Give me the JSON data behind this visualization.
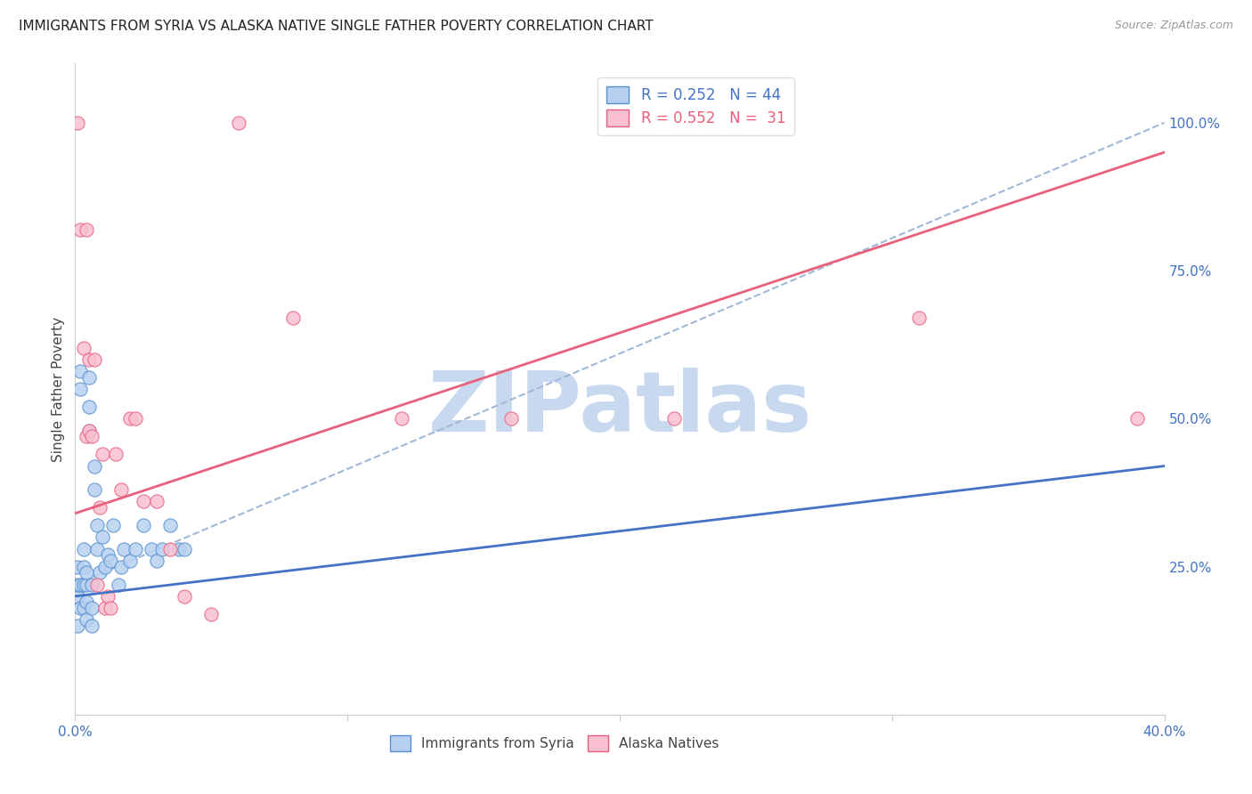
{
  "title": "IMMIGRANTS FROM SYRIA VS ALASKA NATIVE SINGLE FATHER POVERTY CORRELATION CHART",
  "source": "Source: ZipAtlas.com",
  "ylabel": "Single Father Poverty",
  "r_blue": 0.252,
  "n_blue": 44,
  "r_pink": 0.552,
  "n_pink": 31,
  "legend_label_blue": "Immigrants from Syria",
  "legend_label_pink": "Alaska Natives",
  "background_color": "#ffffff",
  "blue_fill_color": "#b8d0f0",
  "pink_fill_color": "#f8c0d0",
  "blue_edge_color": "#5590d0",
  "pink_edge_color": "#e86080",
  "blue_line_color": "#4472c4",
  "pink_line_color": "#e8607a",
  "dashed_line_color": "#a0b8d8",
  "watermark_color": "#c8d8ee",
  "title_color": "#222222",
  "source_color": "#999999",
  "axis_tick_color": "#4472c4",
  "grid_color": "#e8e8e8",
  "blue_dots_x": [
    0.001,
    0.001,
    0.001,
    0.001,
    0.002,
    0.002,
    0.002,
    0.002,
    0.003,
    0.003,
    0.003,
    0.003,
    0.004,
    0.004,
    0.004,
    0.004,
    0.005,
    0.005,
    0.005,
    0.006,
    0.006,
    0.006,
    0.007,
    0.007,
    0.008,
    0.008,
    0.009,
    0.01,
    0.011,
    0.012,
    0.013,
    0.014,
    0.016,
    0.017,
    0.018,
    0.02,
    0.022,
    0.025,
    0.028,
    0.03,
    0.032,
    0.035,
    0.038,
    0.04
  ],
  "blue_dots_y": [
    0.2,
    0.22,
    0.25,
    0.15,
    0.55,
    0.58,
    0.22,
    0.18,
    0.25,
    0.28,
    0.18,
    0.22,
    0.22,
    0.19,
    0.24,
    0.16,
    0.57,
    0.52,
    0.48,
    0.15,
    0.18,
    0.22,
    0.42,
    0.38,
    0.32,
    0.28,
    0.24,
    0.3,
    0.25,
    0.27,
    0.26,
    0.32,
    0.22,
    0.25,
    0.28,
    0.26,
    0.28,
    0.32,
    0.28,
    0.26,
    0.28,
    0.32,
    0.28,
    0.28
  ],
  "pink_dots_x": [
    0.001,
    0.002,
    0.003,
    0.004,
    0.004,
    0.005,
    0.005,
    0.006,
    0.007,
    0.008,
    0.009,
    0.01,
    0.011,
    0.012,
    0.013,
    0.015,
    0.017,
    0.02,
    0.022,
    0.025,
    0.03,
    0.035,
    0.04,
    0.05,
    0.06,
    0.08,
    0.12,
    0.16,
    0.22,
    0.31,
    0.39
  ],
  "pink_dots_y": [
    1.0,
    0.82,
    0.62,
    0.82,
    0.47,
    0.6,
    0.48,
    0.47,
    0.6,
    0.22,
    0.35,
    0.44,
    0.18,
    0.2,
    0.18,
    0.44,
    0.38,
    0.5,
    0.5,
    0.36,
    0.36,
    0.28,
    0.2,
    0.17,
    1.0,
    0.67,
    0.5,
    0.5,
    0.5,
    0.67,
    0.5
  ],
  "blue_line_x": [
    0.0,
    0.4
  ],
  "blue_line_y": [
    0.2,
    0.42
  ],
  "pink_line_x": [
    0.0,
    0.4
  ],
  "pink_line_y": [
    0.34,
    0.95
  ],
  "dashed_line_x": [
    0.0,
    0.4
  ],
  "dashed_line_y": [
    0.22,
    1.0
  ],
  "xlim": [
    0.0,
    0.4
  ],
  "ylim": [
    0.0,
    1.1
  ],
  "x_tick_positions": [
    0.0,
    0.1,
    0.2,
    0.3,
    0.4
  ],
  "x_tick_labels_show": {
    "0.0": "0.0%",
    "0.1": "",
    "0.2": "",
    "0.3": "",
    "0.4": "40.0%"
  },
  "y_ticks_right": [
    0.25,
    0.5,
    0.75,
    1.0
  ],
  "dot_size": 120
}
